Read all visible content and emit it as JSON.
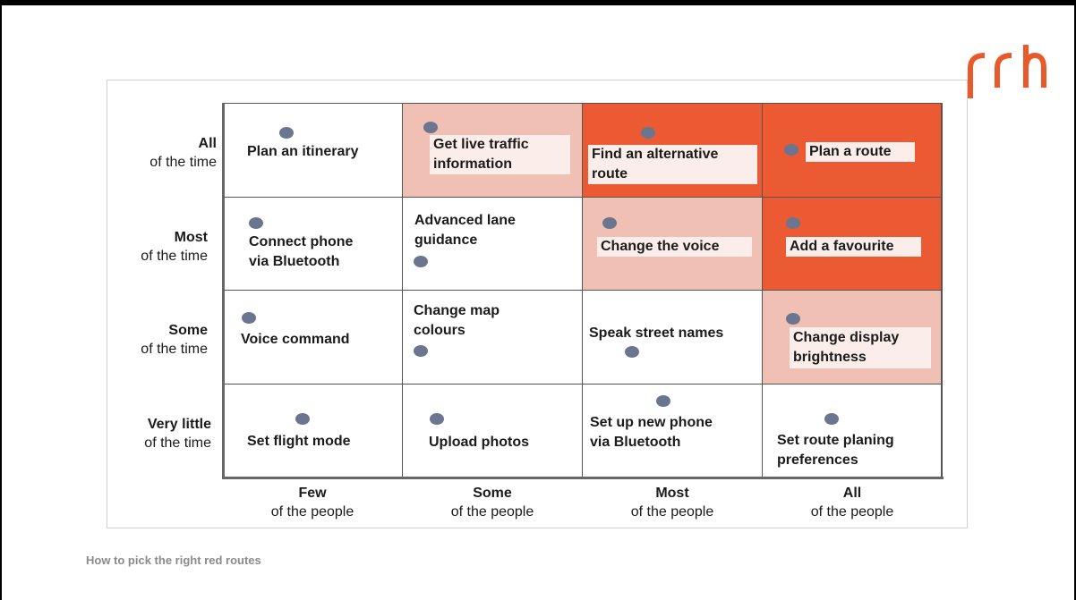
{
  "caption": "How to pick the right red routes",
  "logo": {
    "text": "rrh",
    "color": "#e85a2a"
  },
  "colors": {
    "dark": "#ec5a33",
    "light": "#efc0b3",
    "white": "#ffffff",
    "dot": "#6b7590"
  },
  "rows": [
    {
      "main": "All",
      "sub": "of the time"
    },
    {
      "main": "Most",
      "sub": "of the time"
    },
    {
      "main": "Some",
      "sub": "of the time"
    },
    {
      "main": "Very little",
      "sub": "of the time"
    }
  ],
  "columns": [
    {
      "main": "Few",
      "sub": "of the people"
    },
    {
      "main": "Some",
      "sub": "of the people"
    },
    {
      "main": "Most",
      "sub": "of the people"
    },
    {
      "main": "All",
      "sub": "of the people"
    }
  ],
  "cells": {
    "r0c0": "Plan an itinerary",
    "r0c1": "Get live traffic\ninformation",
    "r0c2": "Find an alternative\nroute",
    "r0c3": "Plan a route",
    "r1c0": "Connect phone\nvia Bluetooth",
    "r1c1": "Advanced lane\nguidance",
    "r1c2": "Change the voice",
    "r1c3": "Add a favourite",
    "r2c0": "Voice command",
    "r2c1": "Change map\ncolours",
    "r2c2": "Speak street names",
    "r2c3": "Change display\nbrightness",
    "r3c0": "Set flight mode",
    "r3c1": "Upload photos",
    "r3c2": "Set up new phone\nvia Bluetooth",
    "r3c3": "Set route planing\npreferences"
  }
}
